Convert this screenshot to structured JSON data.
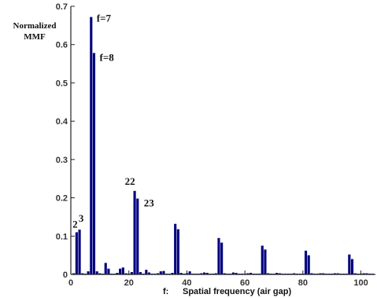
{
  "chart_data": {
    "type": "bar",
    "ylabel_line1": "Normalized",
    "ylabel_line2": "MMF",
    "xlabel_prefix": "f:",
    "xlabel": "Spatial frequency  (air gap)",
    "xlim": [
      0,
      105
    ],
    "ylim": [
      0,
      0.7
    ],
    "xticks": [
      0,
      20,
      40,
      60,
      80,
      100
    ],
    "yticks": [
      0,
      0.1,
      0.2,
      0.3,
      0.4,
      0.5,
      0.6,
      0.7
    ],
    "ytick_labels": [
      "0",
      "0.1",
      "0.2",
      "0.3",
      "0.4",
      "0.5",
      "0.6",
      "0.7"
    ],
    "xtick_labels": [
      "0",
      "20",
      "40",
      "60",
      "80",
      "100"
    ],
    "grid": false,
    "bar_color": "#00007f",
    "x": [
      1,
      2,
      3,
      4,
      5,
      6,
      7,
      8,
      9,
      10,
      11,
      12,
      13,
      14,
      15,
      16,
      17,
      18,
      19,
      20,
      21,
      22,
      23,
      24,
      25,
      26,
      27,
      28,
      29,
      30,
      31,
      32,
      33,
      34,
      35,
      36,
      37,
      38,
      39,
      40,
      41,
      42,
      43,
      44,
      45,
      46,
      47,
      48,
      49,
      50,
      51,
      52,
      53,
      54,
      55,
      56,
      57,
      58,
      59,
      60,
      61,
      62,
      63,
      64,
      65,
      66,
      67,
      68,
      69,
      70,
      71,
      72,
      73,
      74,
      75,
      76,
      77,
      78,
      79,
      80,
      81,
      82,
      83,
      84,
      85,
      86,
      87,
      88,
      89,
      90,
      91,
      92,
      93,
      94,
      95,
      96,
      97,
      98,
      99,
      100,
      101,
      102,
      103,
      104
    ],
    "values": [
      0.003,
      0.11,
      0.117,
      0.003,
      0.002,
      0.008,
      0.672,
      0.578,
      0.008,
      0.003,
      0.002,
      0.03,
      0.015,
      0.002,
      0.002,
      0.004,
      0.015,
      0.018,
      0.003,
      0.002,
      0.006,
      0.218,
      0.198,
      0.006,
      0.002,
      0.012,
      0.005,
      0.002,
      0.002,
      0.003,
      0.008,
      0.009,
      0.002,
      0.002,
      0.004,
      0.132,
      0.118,
      0.004,
      0.002,
      0.003,
      0.008,
      0.002,
      0.002,
      0.002,
      0.003,
      0.005,
      0.004,
      0.002,
      0.002,
      0.003,
      0.095,
      0.083,
      0.003,
      0.002,
      0.002,
      0.005,
      0.004,
      0.002,
      0.002,
      0.002,
      0.003,
      0.004,
      0.002,
      0.002,
      0.002,
      0.075,
      0.065,
      0.003,
      0.002,
      0.002,
      0.004,
      0.003,
      0.002,
      0.002,
      0.002,
      0.002,
      0.003,
      0.002,
      0.002,
      0.002,
      0.062,
      0.05,
      0.003,
      0.002,
      0.002,
      0.003,
      0.003,
      0.002,
      0.002,
      0.002,
      0.003,
      0.003,
      0.002,
      0.002,
      0.002,
      0.052,
      0.04,
      0.003,
      0.002,
      0.002,
      0.003,
      0.003,
      0.002,
      0.002
    ],
    "annotations": [
      {
        "text": "f=7",
        "x": 7,
        "y": 0.672
      },
      {
        "text": "f=8",
        "x": 8,
        "y": 0.578
      },
      {
        "text": "22",
        "x": 22,
        "y": 0.218
      },
      {
        "text": "23",
        "x": 23,
        "y": 0.198
      },
      {
        "text": "2",
        "x": 2,
        "y": 0.11
      },
      {
        "text": "3",
        "x": 3,
        "y": 0.117
      }
    ]
  }
}
